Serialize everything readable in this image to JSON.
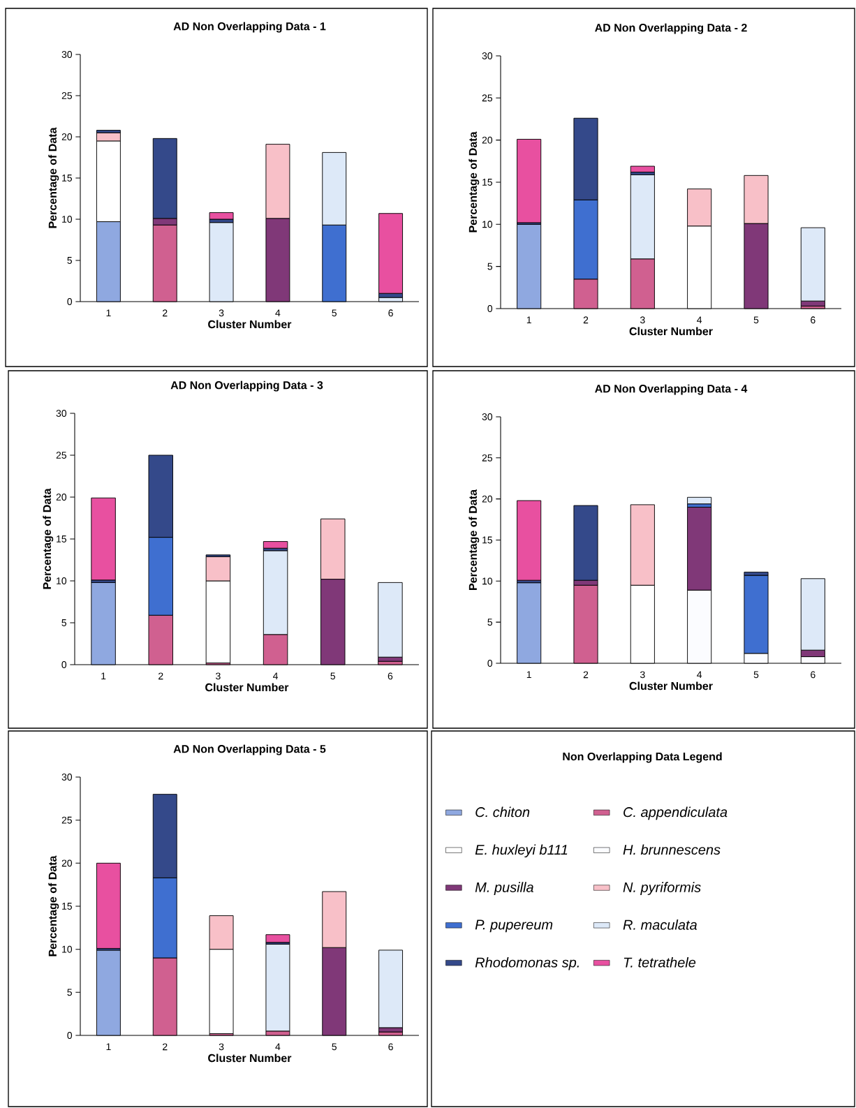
{
  "chart_data": [
    {
      "type": "bar",
      "title": "AD Non Overlapping Data - 1",
      "xlabel": "Cluster Number",
      "ylabel": "Percentage of Data",
      "categories": [
        "1",
        "2",
        "3",
        "4",
        "5",
        "6"
      ],
      "stacked": true,
      "ylim": [
        0,
        30
      ],
      "yticks": [
        0,
        5,
        10,
        15,
        20,
        25,
        30
      ],
      "series": [
        {
          "color": "#8fa8e0",
          "values": [
            9.7,
            null,
            null,
            null,
            null,
            null
          ]
        },
        {
          "color": "#d06090",
          "values": [
            null,
            9.3,
            null,
            null,
            null,
            null
          ]
        },
        {
          "color": "#ffffff",
          "values": [
            9.8,
            null,
            null,
            null,
            null,
            null
          ]
        },
        {
          "color": "#803878",
          "values": [
            null,
            0.8,
            null,
            10.1,
            null,
            null
          ]
        },
        {
          "color": "#f8c0c8",
          "values": [
            1.0,
            null,
            null,
            9.0,
            null,
            null
          ]
        },
        {
          "color": "#3f6fd0",
          "values": [
            null,
            null,
            null,
            null,
            9.3,
            null
          ]
        },
        {
          "color": "#dde9f8",
          "values": [
            null,
            null,
            9.6,
            null,
            8.8,
            0.5
          ]
        },
        {
          "color": "#34498a",
          "values": [
            0.3,
            9.7,
            0.4,
            null,
            null,
            0.5
          ]
        },
        {
          "color": "#e850a0",
          "values": [
            null,
            null,
            0.8,
            null,
            null,
            9.7
          ]
        }
      ]
    },
    {
      "type": "bar",
      "title": "AD Non Overlapping Data - 2",
      "xlabel": "Cluster Number",
      "ylabel": "Percentage of Data",
      "categories": [
        "1",
        "2",
        "3",
        "4",
        "5",
        "6"
      ],
      "stacked": true,
      "ylim": [
        0,
        30
      ],
      "yticks": [
        0,
        5,
        10,
        15,
        20,
        25,
        30
      ],
      "series": [
        {
          "color": "#8fa8e0",
          "values": [
            10.0,
            null,
            null,
            null,
            null,
            null
          ]
        },
        {
          "color": "#d06090",
          "values": [
            null,
            3.5,
            5.9,
            null,
            null,
            0.3
          ]
        },
        {
          "color": "#ffffff",
          "values": [
            null,
            null,
            null,
            9.8,
            null,
            null
          ]
        },
        {
          "color": "#803878",
          "values": [
            null,
            null,
            null,
            null,
            10.1,
            0.6
          ]
        },
        {
          "color": "#f8c0c8",
          "values": [
            null,
            null,
            null,
            4.4,
            5.7,
            null
          ]
        },
        {
          "color": "#3f6fd0",
          "values": [
            null,
            9.4,
            null,
            null,
            null,
            null
          ]
        },
        {
          "color": "#dde9f8",
          "values": [
            null,
            null,
            10.0,
            null,
            null,
            8.7
          ]
        },
        {
          "color": "#34498a",
          "values": [
            0.2,
            9.7,
            0.3,
            null,
            null,
            null
          ]
        },
        {
          "color": "#e850a0",
          "values": [
            9.9,
            null,
            0.7,
            null,
            null,
            null
          ]
        }
      ]
    },
    {
      "type": "bar",
      "title": "AD Non Overlapping Data - 3",
      "xlabel": "Cluster Number",
      "ylabel": "Percentage of Data",
      "categories": [
        "1",
        "2",
        "3",
        "4",
        "5",
        "6"
      ],
      "stacked": true,
      "ylim": [
        0,
        30
      ],
      "yticks": [
        0,
        5,
        10,
        15,
        20,
        25,
        30
      ],
      "series": [
        {
          "color": "#8fa8e0",
          "values": [
            9.8,
            null,
            null,
            null,
            null,
            null
          ]
        },
        {
          "color": "#d06090",
          "values": [
            null,
            5.9,
            0.2,
            3.6,
            null,
            0.4
          ]
        },
        {
          "color": "#ffffff",
          "values": [
            null,
            null,
            9.8,
            null,
            null,
            null
          ]
        },
        {
          "color": "#803878",
          "values": [
            null,
            null,
            null,
            null,
            10.2,
            0.5
          ]
        },
        {
          "color": "#f8c0c8",
          "values": [
            null,
            null,
            2.9,
            null,
            7.2,
            null
          ]
        },
        {
          "color": "#3f6fd0",
          "values": [
            null,
            9.3,
            null,
            null,
            null,
            null
          ]
        },
        {
          "color": "#dde9f8",
          "values": [
            null,
            null,
            null,
            10.0,
            null,
            8.9
          ]
        },
        {
          "color": "#34498a",
          "values": [
            0.3,
            9.8,
            0.2,
            0.3,
            null,
            null
          ]
        },
        {
          "color": "#e850a0",
          "values": [
            9.8,
            null,
            null,
            0.8,
            null,
            null
          ]
        }
      ]
    },
    {
      "type": "bar",
      "title": "AD Non Overlapping Data - 4",
      "xlabel": "Cluster Number",
      "ylabel": "Percentage of Data",
      "categories": [
        "1",
        "2",
        "3",
        "4",
        "5",
        "6"
      ],
      "stacked": true,
      "ylim": [
        0,
        30
      ],
      "yticks": [
        0,
        5,
        10,
        15,
        20,
        25,
        30
      ],
      "series": [
        {
          "color": "#8fa8e0",
          "values": [
            9.8,
            null,
            null,
            null,
            null,
            null
          ]
        },
        {
          "color": "#d06090",
          "values": [
            null,
            9.5,
            null,
            null,
            null,
            null
          ]
        },
        {
          "color": "#ffffff",
          "values": [
            null,
            null,
            9.5,
            null,
            null,
            null
          ]
        },
        {
          "color": "#fbfcff",
          "values": [
            null,
            null,
            null,
            8.9,
            1.2,
            0.8
          ]
        },
        {
          "color": "#803878",
          "values": [
            null,
            0.6,
            null,
            10.1,
            null,
            0.8
          ]
        },
        {
          "color": "#f8c0c8",
          "values": [
            null,
            null,
            9.8,
            null,
            null,
            null
          ]
        },
        {
          "color": "#3f6fd0",
          "values": [
            null,
            null,
            null,
            0.4,
            9.5,
            null
          ]
        },
        {
          "color": "#dde9f8",
          "values": [
            null,
            null,
            null,
            0.8,
            null,
            8.7
          ]
        },
        {
          "color": "#34498a",
          "values": [
            0.3,
            9.1,
            null,
            null,
            0.4,
            null
          ]
        },
        {
          "color": "#e850a0",
          "values": [
            9.7,
            null,
            null,
            null,
            null,
            null
          ]
        }
      ]
    },
    {
      "type": "bar",
      "title": "AD Non Overlapping Data - 5",
      "xlabel": "Cluster Number",
      "ylabel": "Percentage of Data",
      "categories": [
        "1",
        "2",
        "3",
        "4",
        "5",
        "6"
      ],
      "stacked": true,
      "ylim": [
        0,
        30
      ],
      "yticks": [
        0,
        5,
        10,
        15,
        20,
        25,
        30
      ],
      "legend": "right",
      "legend_title": "Non Overlapping Data Legend",
      "series": [
        {
          "name": "C. chiton",
          "color": "#8fa8e0",
          "values": [
            9.9,
            null,
            null,
            null,
            null,
            null
          ]
        },
        {
          "name": "C. appendiculata",
          "color": "#d06090",
          "values": [
            null,
            9.0,
            0.2,
            0.5,
            null,
            0.4
          ]
        },
        {
          "name": "E. huxleyi b111",
          "color": "#ffffff",
          "values": [
            null,
            null,
            9.8,
            null,
            null,
            null
          ]
        },
        {
          "name": "H. brunnescens",
          "color": "#fbfcff",
          "values": [
            null,
            null,
            null,
            null,
            null,
            null
          ]
        },
        {
          "name": "M. pusilla",
          "color": "#803878",
          "values": [
            null,
            null,
            null,
            null,
            10.2,
            0.5
          ]
        },
        {
          "name": "N. pyriformis",
          "color": "#f8c0c8",
          "values": [
            null,
            null,
            3.9,
            null,
            6.5,
            null
          ]
        },
        {
          "name": "P. pupereum",
          "color": "#3f6fd0",
          "values": [
            null,
            9.3,
            null,
            null,
            null,
            null
          ]
        },
        {
          "name": "R. maculata",
          "color": "#dde9f8",
          "values": [
            null,
            null,
            null,
            10.1,
            null,
            9.0
          ]
        },
        {
          "name": "Rhodomonas sp.",
          "color": "#34498a",
          "values": [
            0.2,
            9.7,
            null,
            0.2,
            null,
            null
          ]
        },
        {
          "name": "T. tetrathele",
          "color": "#e850a0",
          "values": [
            9.9,
            null,
            null,
            0.9,
            null,
            null
          ]
        }
      ]
    }
  ]
}
